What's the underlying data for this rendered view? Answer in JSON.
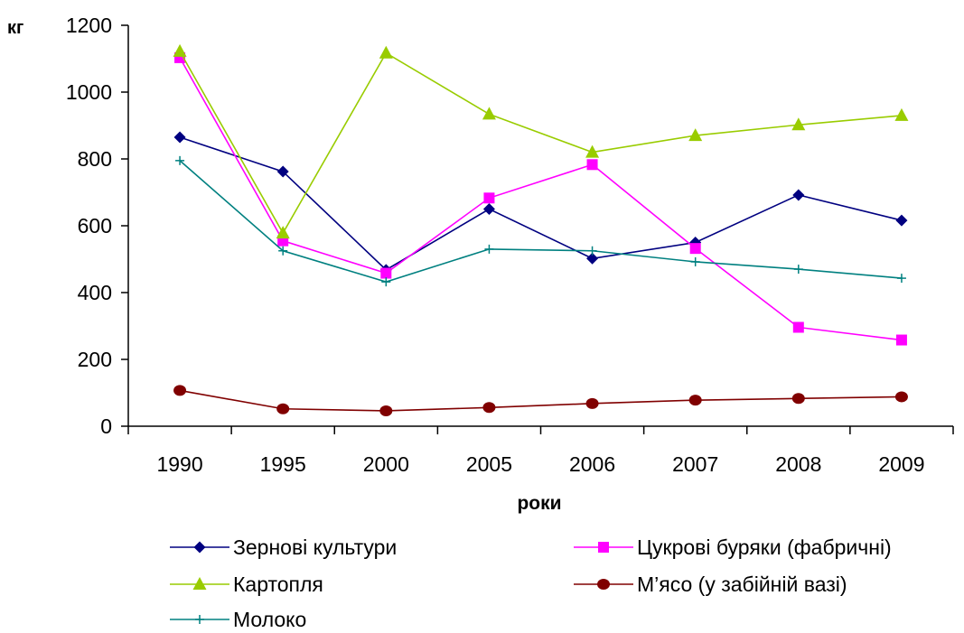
{
  "chart_data": {
    "type": "line",
    "ylabel": "кг",
    "xlabel": "роки",
    "categories": [
      "1990",
      "1995",
      "2000",
      "2005",
      "2006",
      "2007",
      "2008",
      "2009"
    ],
    "ylim": [
      0,
      1200
    ],
    "yticks": [
      0,
      200,
      400,
      600,
      800,
      1000,
      1200
    ],
    "legend_position": "bottom",
    "grid": false,
    "series": [
      {
        "name": "Зернові культури",
        "color": "#000080",
        "marker": "diamond",
        "values": [
          865,
          762,
          468,
          650,
          502,
          550,
          692,
          616
        ]
      },
      {
        "name": "Цукрові буряки (фабричні)",
        "color": "#ff00ff",
        "marker": "square",
        "values": [
          1103,
          555,
          458,
          683,
          783,
          532,
          296,
          258
        ]
      },
      {
        "name": "Картопля",
        "color": "#99cc00",
        "marker": "triangle",
        "values": [
          1122,
          578,
          1117,
          934,
          820,
          870,
          902,
          930
        ]
      },
      {
        "name": "М’ясо (у забійній вазі)",
        "color": "#800000",
        "marker": "circle",
        "values": [
          107,
          52,
          46,
          56,
          68,
          78,
          83,
          88
        ]
      },
      {
        "name": "Молоко",
        "color": "#008080",
        "marker": "plus",
        "values": [
          795,
          525,
          432,
          530,
          525,
          492,
          470,
          443
        ]
      }
    ]
  }
}
